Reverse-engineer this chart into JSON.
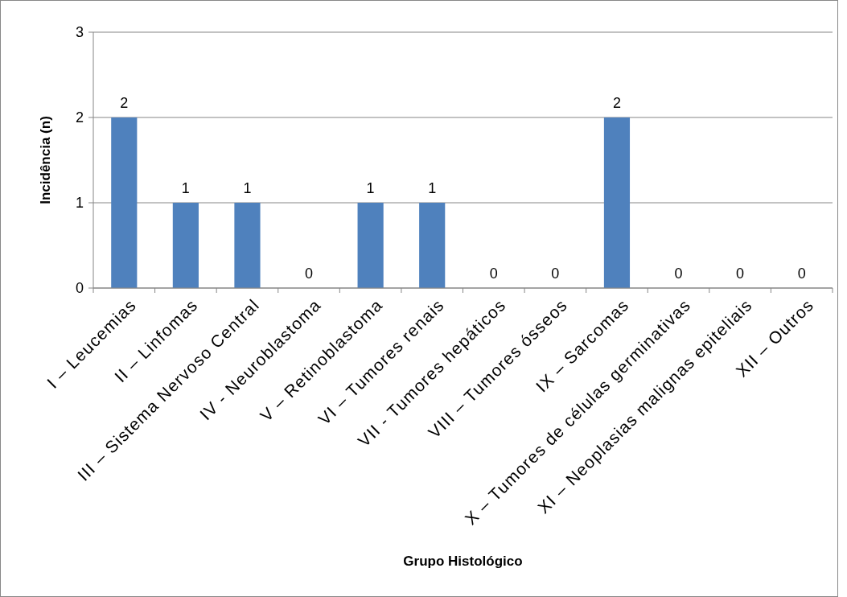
{
  "chart_data": {
    "type": "bar",
    "xlabel": "Grupo Histológico",
    "ylabel": "Incidência (n)",
    "categories": [
      "I – Leucemias",
      "II – Linfomas",
      "III – Sistema Nervoso Central",
      "IV - Neuroblastoma",
      "V – Retinoblastoma",
      "VI – Tumores renais",
      "VII - Tumores hepáticos",
      "VIII – Tumores ósseos",
      "IX – Sarcomas",
      "X – Tumores de células germinativas",
      "XI – Neoplasias malignas epiteliais",
      "XII – Outros"
    ],
    "values": [
      2,
      1,
      1,
      0,
      1,
      1,
      0,
      0,
      2,
      0,
      0,
      0
    ],
    "color": "#4f81bd",
    "ylim": [
      0,
      3
    ],
    "yticks": [
      0,
      1,
      2,
      3
    ],
    "grid": "y",
    "data_labels": true
  }
}
